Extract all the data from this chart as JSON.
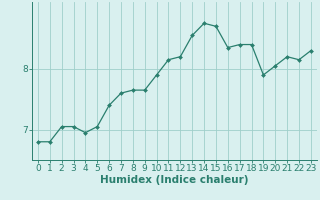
{
  "x": [
    0,
    1,
    2,
    3,
    4,
    5,
    6,
    7,
    8,
    9,
    10,
    11,
    12,
    13,
    14,
    15,
    16,
    17,
    18,
    19,
    20,
    21,
    22,
    23
  ],
  "y": [
    6.8,
    6.8,
    7.05,
    7.05,
    6.95,
    7.05,
    7.4,
    7.6,
    7.65,
    7.65,
    7.9,
    8.15,
    8.2,
    8.55,
    8.75,
    8.7,
    8.35,
    8.4,
    8.4,
    7.9,
    8.05,
    8.2,
    8.15,
    8.3
  ],
  "xlabel": "Humidex (Indice chaleur)",
  "line_color": "#2a7f6e",
  "marker_color": "#2a7f6e",
  "bg_color": "#d9f0ef",
  "grid_color": "#9fcfca",
  "axis_color": "#2a7f6e",
  "tick_color": "#2a7f6e",
  "label_color": "#2a7f6e",
  "yticks": [
    7,
    8
  ],
  "ylim": [
    6.5,
    9.1
  ],
  "xlim": [
    -0.5,
    23.5
  ],
  "xlabel_fontsize": 7.5,
  "tick_fontsize": 6.5
}
